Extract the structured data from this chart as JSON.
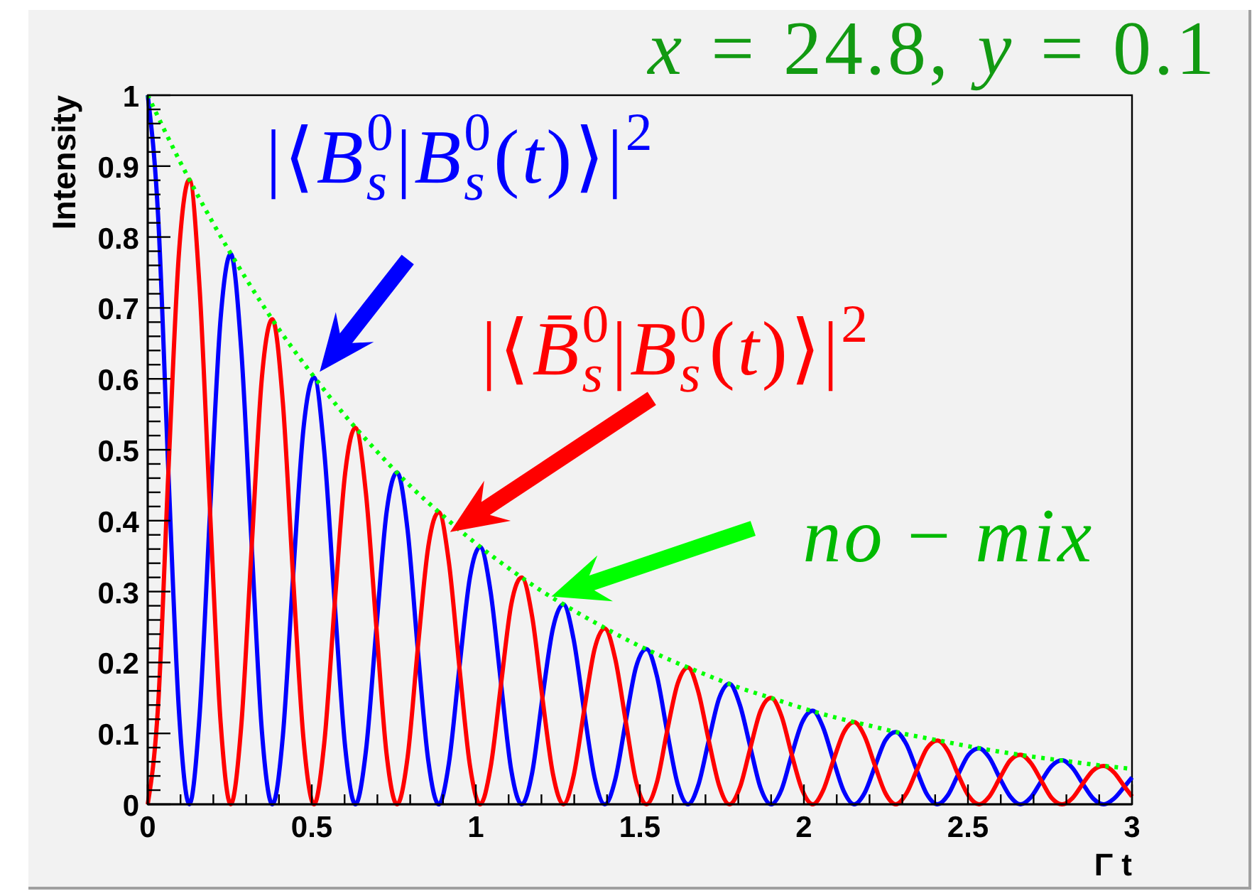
{
  "chart_data": {
    "type": "line",
    "title": "x = 24.8, y = 0.1",
    "xlabel": "Γ t",
    "ylabel": "Intensity",
    "x": [
      0,
      0.032,
      0.063,
      0.095,
      0.127,
      0.158,
      0.19,
      0.222,
      0.253,
      0.285,
      0.317,
      0.348,
      0.38,
      0.412,
      0.443,
      0.475,
      0.507,
      0.538,
      0.57,
      0.602,
      0.633,
      0.665,
      0.697,
      0.728,
      0.76,
      0.792,
      0.823,
      0.855,
      0.887,
      0.918,
      0.95,
      0.982,
      1.013,
      1.045,
      1.077,
      1.108,
      1.14,
      1.172,
      1.203,
      1.235,
      1.267,
      1.298,
      1.33,
      1.362,
      1.393,
      1.425,
      1.457,
      1.488,
      1.52,
      1.552,
      1.583,
      1.615,
      1.647,
      1.678,
      1.71,
      1.742,
      1.773,
      1.805,
      1.837,
      1.868,
      1.9,
      1.932,
      1.963,
      1.995,
      2.027,
      2.058,
      2.09,
      2.122,
      2.153,
      2.185,
      2.217,
      2.248,
      2.28,
      2.312,
      2.344,
      2.375,
      2.407,
      2.439,
      2.47,
      2.502,
      2.534,
      2.565,
      2.597,
      2.629,
      2.66,
      2.692,
      2.724,
      2.755,
      2.787,
      2.819,
      2.85,
      2.882,
      2.914,
      2.945,
      2.977,
      3
    ],
    "xlim": [
      0,
      3
    ],
    "ylim": [
      0,
      1
    ],
    "xticks": [
      0,
      {
        "value": 0.1,
        "label": null
      },
      {
        "value": 0.2,
        "label": null
      },
      {
        "value": 0.3,
        "label": null
      },
      {
        "value": 0.4,
        "label": null
      },
      0.5,
      {
        "value": 0.6,
        "label": null
      },
      {
        "value": 0.7,
        "label": null
      },
      {
        "value": 0.8,
        "label": null
      },
      {
        "value": 0.9,
        "label": null
      },
      1,
      {
        "value": 1.1,
        "label": null
      },
      {
        "value": 1.2,
        "label": null
      },
      {
        "value": 1.3,
        "label": null
      },
      {
        "value": 1.4,
        "label": null
      },
      1.5,
      {
        "value": 1.6,
        "label": null
      },
      {
        "value": 1.7,
        "label": null
      },
      {
        "value": 1.8,
        "label": null
      },
      {
        "value": 1.9,
        "label": null
      },
      2,
      {
        "value": 2.1,
        "label": null
      },
      {
        "value": 2.2,
        "label": null
      },
      {
        "value": 2.3,
        "label": null
      },
      {
        "value": 2.4,
        "label": null
      },
      2.5,
      {
        "value": 2.6,
        "label": null
      },
      {
        "value": 2.7,
        "label": null
      },
      {
        "value": 2.8,
        "label": null
      },
      {
        "value": 2.9,
        "label": null
      },
      3
    ],
    "yticks": [
      0,
      {
        "value": 0.02,
        "label": null
      },
      {
        "value": 0.04,
        "label": null
      },
      {
        "value": 0.06,
        "label": null
      },
      {
        "value": 0.08,
        "label": null
      },
      0.1,
      {
        "value": 0.12,
        "label": null
      },
      {
        "value": 0.14,
        "label": null
      },
      {
        "value": 0.16,
        "label": null
      },
      {
        "value": 0.18,
        "label": null
      },
      0.2,
      {
        "value": 0.22,
        "label": null
      },
      {
        "value": 0.24,
        "label": null
      },
      {
        "value": 0.26,
        "label": null
      },
      {
        "value": 0.28,
        "label": null
      },
      0.3,
      {
        "value": 0.32,
        "label": null
      },
      {
        "value": 0.34,
        "label": null
      },
      {
        "value": 0.36,
        "label": null
      },
      {
        "value": 0.38,
        "label": null
      },
      0.4,
      {
        "value": 0.42,
        "label": null
      },
      {
        "value": 0.44,
        "label": null
      },
      {
        "value": 0.46,
        "label": null
      },
      {
        "value": 0.48,
        "label": null
      },
      0.5,
      {
        "value": 0.52,
        "label": null
      },
      {
        "value": 0.54,
        "label": null
      },
      {
        "value": 0.56,
        "label": null
      },
      {
        "value": 0.58,
        "label": null
      },
      0.6,
      {
        "value": 0.62,
        "label": null
      },
      {
        "value": 0.64,
        "label": null
      },
      {
        "value": 0.66,
        "label": null
      },
      {
        "value": 0.68,
        "label": null
      },
      0.7,
      {
        "value": 0.72,
        "label": null
      },
      {
        "value": 0.74,
        "label": null
      },
      {
        "value": 0.76,
        "label": null
      },
      {
        "value": 0.78,
        "label": null
      },
      0.8,
      {
        "value": 0.82,
        "label": null
      },
      {
        "value": 0.84,
        "label": null
      },
      {
        "value": 0.86,
        "label": null
      },
      {
        "value": 0.88,
        "label": null
      },
      0.9,
      {
        "value": 0.92,
        "label": null
      },
      {
        "value": 0.94,
        "label": null
      },
      {
        "value": 0.96,
        "label": null
      },
      {
        "value": 0.98,
        "label": null
      },
      1
    ],
    "series": [
      {
        "name": "|⟨B$_{s}$$^{0}$|B$_{s}$$^{0}$(t)⟩|$^{2}$",
        "color": "#0000ff",
        "values": [
          1,
          0.827,
          0.469,
          0.133,
          0,
          0.125,
          0.413,
          0.684,
          0.776,
          0.642,
          0.364,
          0.103,
          0,
          0.097,
          0.321,
          0.531,
          0.602,
          0.498,
          0.283,
          0.08,
          0,
          0.075,
          0.249,
          0.412,
          0.468,
          0.387,
          0.219,
          0.062,
          0,
          0.058,
          0.193,
          0.32,
          0.363,
          0.3,
          0.17,
          0.048,
          0,
          0.045,
          0.15,
          0.248,
          0.282,
          0.233,
          0.132,
          0.038,
          0,
          0.035,
          0.117,
          0.193,
          0.219,
          0.181,
          0.103,
          0.029,
          0,
          0.027,
          0.09,
          0.15,
          0.17,
          0.14,
          0.08,
          0.023,
          0,
          0.021,
          0.07,
          0.116,
          0.132,
          0.109,
          0.062,
          0.018,
          0,
          0.016,
          0.054,
          0.09,
          0.102,
          0.085,
          0.048,
          0.014,
          0,
          0.013,
          0.042,
          0.07,
          0.079,
          0.066,
          0.037,
          0.011,
          0,
          0.01,
          0.033,
          0.054,
          0.062,
          0.051,
          0.029,
          0.008,
          0,
          0.008,
          0.025,
          0.038
        ]
      },
      {
        "name": "|⟨B̄$_{s}$$^{0}$|B$_{s}$$^{0}$(t)⟩|$^{2}$",
        "color": "#ff0000",
        "values": [
          0,
          0.142,
          0.469,
          0.776,
          0.881,
          0.729,
          0.413,
          0.117,
          0,
          0.11,
          0.364,
          0.602,
          0.684,
          0.566,
          0.321,
          0.091,
          0,
          0.086,
          0.283,
          0.468,
          0.531,
          0.439,
          0.249,
          0.071,
          0,
          0.066,
          0.219,
          0.363,
          0.412,
          0.341,
          0.193,
          0.055,
          0,
          0.052,
          0.17,
          0.282,
          0.32,
          0.264,
          0.15,
          0.043,
          0,
          0.04,
          0.132,
          0.219,
          0.248,
          0.205,
          0.117,
          0.033,
          0,
          0.031,
          0.103,
          0.17,
          0.193,
          0.159,
          0.09,
          0.026,
          0,
          0.024,
          0.08,
          0.132,
          0.15,
          0.124,
          0.07,
          0.02,
          0,
          0.019,
          0.062,
          0.102,
          0.116,
          0.096,
          0.054,
          0.016,
          0,
          0.015,
          0.048,
          0.079,
          0.09,
          0.075,
          0.042,
          0.012,
          0,
          0.011,
          0.037,
          0.062,
          0.07,
          0.058,
          0.033,
          0.009,
          0,
          0.009,
          0.029,
          0.048,
          0.054,
          0.045,
          0.025,
          0.011
        ]
      },
      {
        "name": "no − mix",
        "color": "#00ff00",
        "line_style": "dotted",
        "x": [
          0,
          0.1,
          0.2,
          0.3,
          0.4,
          0.5,
          0.6,
          0.7,
          0.8,
          0.9,
          1,
          1.1,
          1.2,
          1.3,
          1.4,
          1.5,
          1.6,
          1.7,
          1.8,
          1.9,
          2,
          2.1,
          2.2,
          2.3,
          2.4,
          2.5,
          2.6,
          2.7,
          2.8,
          2.9,
          3
        ],
        "values": [
          1,
          0.905,
          0.819,
          0.741,
          0.67,
          0.607,
          0.549,
          0.497,
          0.449,
          0.407,
          0.368,
          0.333,
          0.301,
          0.273,
          0.247,
          0.223,
          0.202,
          0.183,
          0.165,
          0.15,
          0.135,
          0.122,
          0.111,
          0.1,
          0.091,
          0.082,
          0.074,
          0.067,
          0.061,
          0.055,
          0.05
        ]
      }
    ]
  }
}
